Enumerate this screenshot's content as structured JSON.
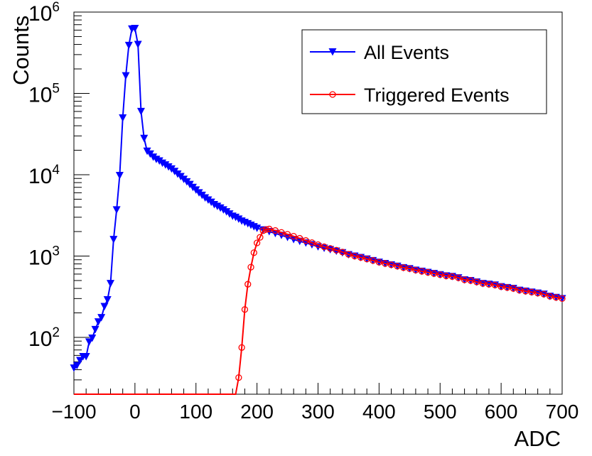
{
  "chart_data": {
    "type": "line",
    "title": "",
    "xlabel": "ADC",
    "ylabel": "Counts",
    "xlim": [
      -100,
      700
    ],
    "ylim": [
      20,
      1000000
    ],
    "yscale": "log",
    "grid": false,
    "legend_position": "top-right",
    "x_ticks": [
      -100,
      0,
      100,
      200,
      300,
      400,
      500,
      600,
      700
    ],
    "y_ticks": [
      {
        "value": 100,
        "base": "10",
        "exp": "2"
      },
      {
        "value": 1000,
        "base": "10",
        "exp": "3"
      },
      {
        "value": 10000,
        "base": "10",
        "exp": "4"
      },
      {
        "value": 100000,
        "base": "10",
        "exp": "5"
      },
      {
        "value": 1000000,
        "base": "10",
        "exp": "6"
      }
    ],
    "series": [
      {
        "name": "All Events",
        "color": "#0000ff",
        "marker": "triangle-down",
        "x": [
          -100,
          -95,
          -90,
          -85,
          -80,
          -75,
          -70,
          -65,
          -60,
          -55,
          -50,
          -45,
          -40,
          -35,
          -30,
          -25,
          -20,
          -15,
          -10,
          -5,
          0,
          5,
          10,
          15,
          20,
          25,
          30,
          35,
          40,
          45,
          50,
          55,
          60,
          65,
          70,
          75,
          80,
          85,
          90,
          95,
          100,
          105,
          110,
          115,
          120,
          125,
          130,
          135,
          140,
          145,
          150,
          155,
          160,
          165,
          170,
          175,
          180,
          185,
          190,
          195,
          200,
          210,
          220,
          230,
          240,
          250,
          260,
          270,
          280,
          290,
          300,
          310,
          320,
          330,
          340,
          350,
          360,
          370,
          380,
          390,
          400,
          410,
          420,
          430,
          440,
          450,
          460,
          470,
          480,
          490,
          500,
          510,
          520,
          530,
          540,
          550,
          560,
          570,
          580,
          590,
          600,
          610,
          620,
          630,
          640,
          650,
          660,
          670,
          680,
          690,
          700
        ],
        "y": [
          42,
          45,
          52,
          58,
          58,
          88,
          98,
          125,
          155,
          175,
          240,
          290,
          460,
          1600,
          3700,
          9800,
          50000,
          165000,
          390000,
          620000,
          630000,
          400000,
          60000,
          28000,
          19500,
          18000,
          16500,
          15500,
          14800,
          13900,
          13200,
          12500,
          11800,
          11000,
          10200,
          9500,
          8800,
          8200,
          7600,
          7000,
          6500,
          6000,
          5600,
          5200,
          4900,
          4600,
          4300,
          4100,
          3900,
          3700,
          3500,
          3300,
          3100,
          3000,
          2850,
          2700,
          2600,
          2500,
          2400,
          2300,
          2200,
          2100,
          2000,
          1900,
          1800,
          1700,
          1600,
          1520,
          1450,
          1380,
          1300,
          1250,
          1200,
          1150,
          1100,
          1040,
          1000,
          960,
          920,
          880,
          840,
          810,
          780,
          750,
          720,
          700,
          670,
          650,
          630,
          610,
          590,
          570,
          560,
          540,
          510,
          500,
          480,
          460,
          450,
          440,
          420,
          410,
          400,
          380,
          370,
          360,
          350,
          340,
          320,
          310,
          300
        ]
      },
      {
        "name": "Triggered Events",
        "color": "#ff0000",
        "marker": "circle-open",
        "x": [
          -100,
          165,
          170,
          175,
          180,
          185,
          190,
          195,
          200,
          205,
          210,
          215,
          220,
          230,
          240,
          250,
          260,
          270,
          280,
          290,
          300,
          310,
          320,
          330,
          340,
          350,
          360,
          370,
          380,
          390,
          400,
          410,
          420,
          430,
          440,
          450,
          460,
          470,
          480,
          490,
          500,
          510,
          520,
          530,
          540,
          550,
          560,
          570,
          580,
          590,
          600,
          610,
          620,
          630,
          640,
          650,
          660,
          670,
          680,
          690,
          700
        ],
        "y": [
          20,
          20,
          32,
          75,
          220,
          450,
          730,
          1100,
          1450,
          1700,
          2050,
          2120,
          2150,
          2060,
          1950,
          1850,
          1750,
          1650,
          1550,
          1460,
          1380,
          1300,
          1240,
          1180,
          1120,
          1050,
          1000,
          960,
          920,
          880,
          840,
          810,
          780,
          750,
          720,
          700,
          670,
          650,
          630,
          610,
          590,
          570,
          560,
          540,
          510,
          500,
          480,
          460,
          450,
          440,
          420,
          410,
          400,
          380,
          370,
          360,
          350,
          340,
          320,
          310,
          300
        ]
      }
    ]
  }
}
